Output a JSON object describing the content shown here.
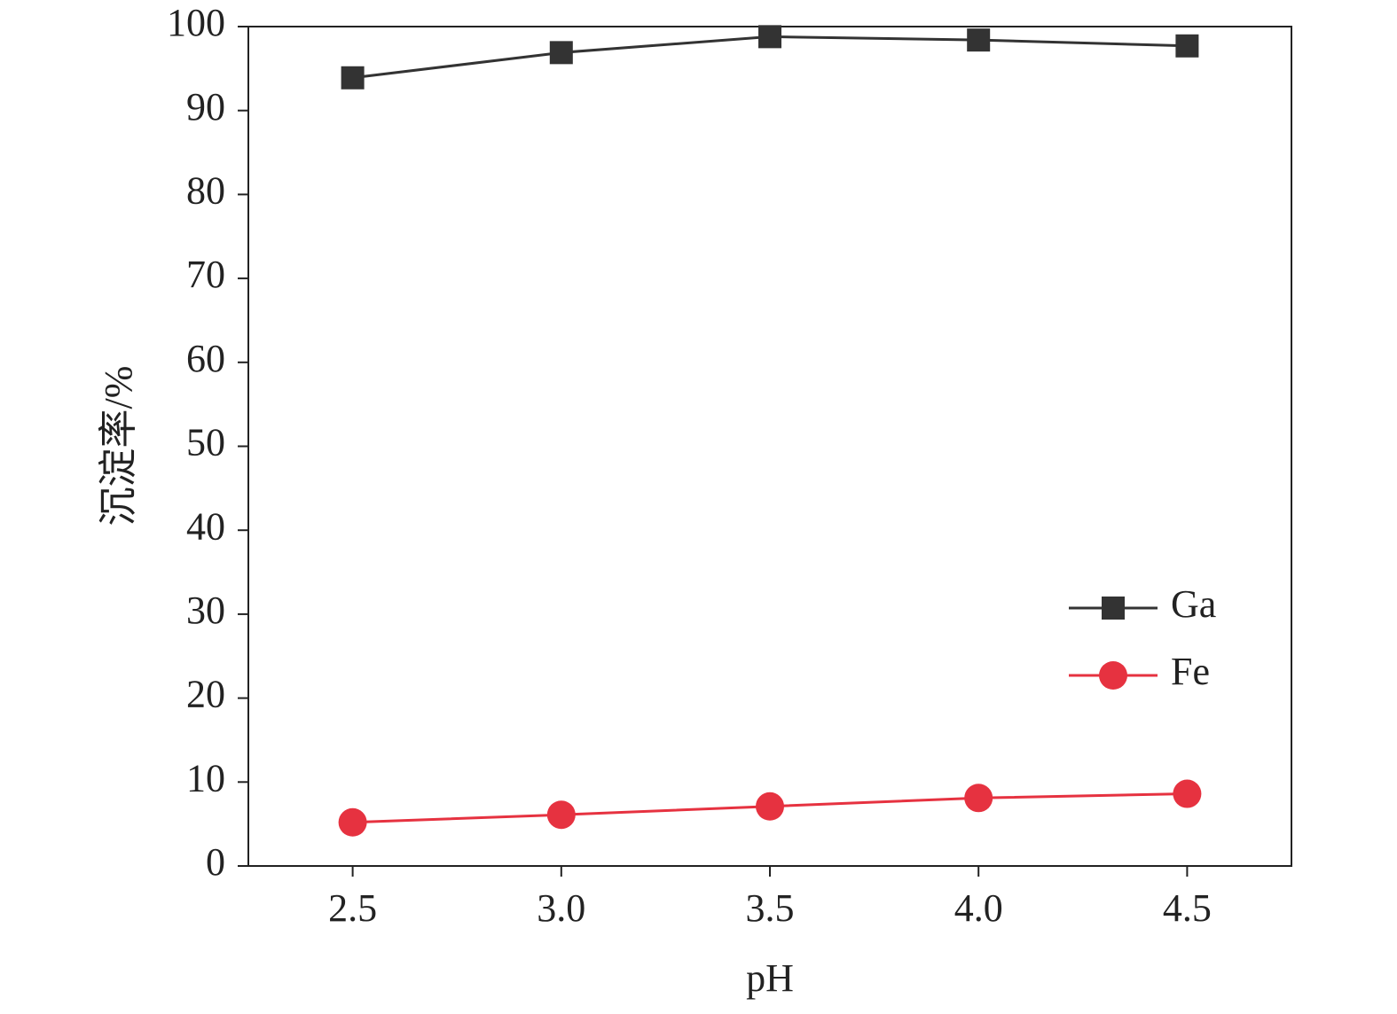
{
  "chart_data": {
    "type": "line",
    "x_label": "pH",
    "y_label": "沉淀率/%",
    "x": [
      2.5,
      3.0,
      3.5,
      4.0,
      4.5
    ],
    "series": [
      {
        "name": "Ga",
        "color": "#333333",
        "marker": "square",
        "values": [
          93.9,
          96.9,
          98.8,
          98.4,
          97.7
        ]
      },
      {
        "name": "Fe",
        "color": "#e63240",
        "marker": "circle",
        "values": [
          5.2,
          6.1,
          7.1,
          8.1,
          8.6
        ]
      }
    ],
    "xlim": [
      2.25,
      4.75
    ],
    "xticks": [
      {
        "value": 2.5,
        "label": "2.5"
      },
      {
        "value": 3.0,
        "label": "3.0"
      },
      {
        "value": 3.5,
        "label": "3.5"
      },
      {
        "value": 4.0,
        "label": "4.0"
      },
      {
        "value": 4.5,
        "label": "4.5"
      }
    ],
    "ylim": [
      0,
      100
    ],
    "yticks": [
      0,
      10,
      20,
      30,
      40,
      50,
      60,
      70,
      80,
      90,
      100
    ],
    "grid": false,
    "legend": "center right"
  }
}
